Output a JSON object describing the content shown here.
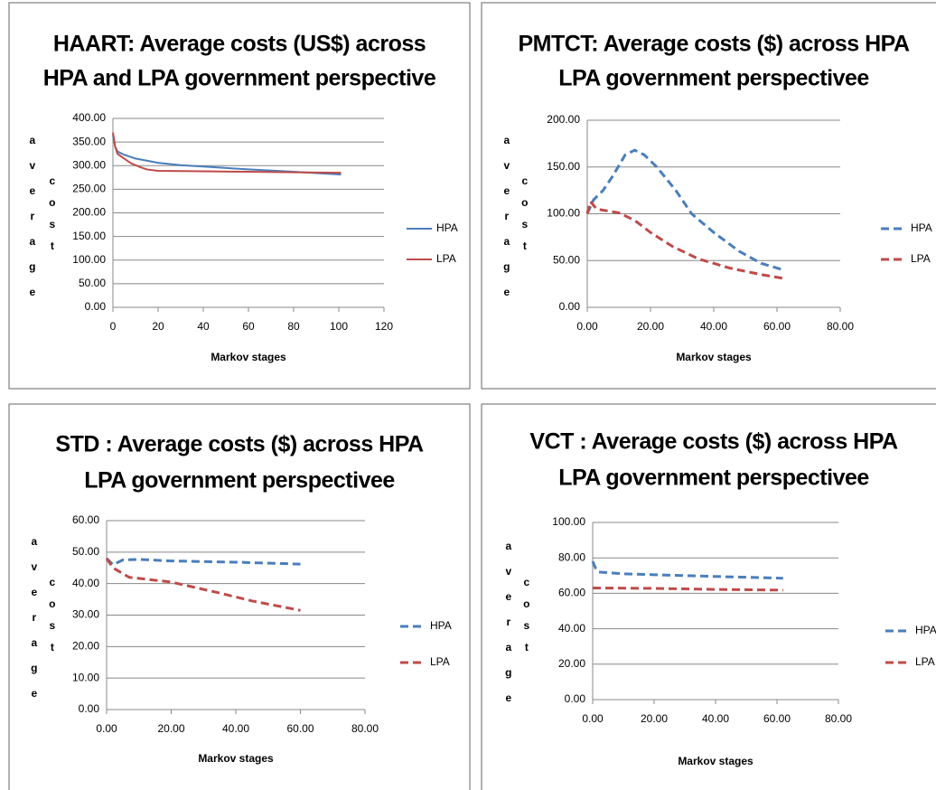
{
  "chart_data": [
    {
      "type": "line",
      "title": [
        "HAART: Average costs (US$) across",
        "HPA and LPA government perspective"
      ],
      "ylabel": [
        "average",
        "cost"
      ],
      "xlabel": "Markov stages",
      "grid": true,
      "dashed": false,
      "xlim": [
        0,
        120
      ],
      "xticks": [
        0,
        20,
        40,
        60,
        80,
        100,
        120
      ],
      "ylim": [
        0,
        400
      ],
      "yticks": [
        {
          "value": 0,
          "label": "0.00"
        },
        {
          "value": 50,
          "label": "50.00"
        },
        {
          "value": 100,
          "label": "100.00"
        },
        {
          "value": 150,
          "label": "150.00"
        },
        {
          "value": 200,
          "label": "200.00"
        },
        {
          "value": 250,
          "label": "250.00"
        },
        {
          "value": 300,
          "label": "300.00"
        },
        {
          "value": 350,
          "label": "350.00"
        },
        {
          "value": 400,
          "label": "400.00"
        }
      ],
      "series": [
        {
          "name": "HPA",
          "color": "#4a7ebb",
          "x": [
            0,
            1,
            2,
            5,
            10,
            20,
            30,
            40,
            60,
            80,
            101
          ],
          "values": [
            365,
            340,
            330,
            323,
            315,
            306,
            301,
            298,
            292,
            287,
            281
          ]
        },
        {
          "name": "LPA",
          "color": "#be4b48",
          "x": [
            0,
            1,
            2,
            5,
            8,
            12,
            15,
            20,
            40,
            60,
            80,
            101
          ],
          "values": [
            370,
            340,
            325,
            315,
            305,
            297,
            292,
            289,
            288,
            287,
            286,
            285
          ]
        }
      ]
    },
    {
      "type": "line",
      "title": [
        "PMTCT: Average costs ($) across HPA",
        "LPA government perspectivee"
      ],
      "ylabel": [
        "average",
        "cost"
      ],
      "xlabel": "Markov stages",
      "grid": true,
      "dashed": true,
      "xlim": [
        0,
        80
      ],
      "xticks": [
        {
          "value": 0,
          "label": "0.00"
        },
        {
          "value": 20,
          "label": "20.00"
        },
        {
          "value": 40,
          "label": "40.00"
        },
        {
          "value": 60,
          "label": "60.00"
        },
        {
          "value": 80,
          "label": "80.00"
        }
      ],
      "ylim": [
        0,
        200
      ],
      "yticks": [
        {
          "value": 0,
          "label": "0.00"
        },
        {
          "value": 50,
          "label": "50.00"
        },
        {
          "value": 100,
          "label": "100.00"
        },
        {
          "value": 150,
          "label": "150.00"
        },
        {
          "value": 200,
          "label": "200.00"
        }
      ],
      "series": [
        {
          "name": "HPA",
          "color": "#4a7ebb",
          "x": [
            0,
            2,
            5,
            8,
            12,
            15,
            18,
            22,
            28,
            33,
            40,
            48,
            55,
            62
          ],
          "values": [
            100,
            115,
            125,
            140,
            163,
            168,
            163,
            150,
            125,
            100,
            80,
            60,
            47,
            40
          ]
        },
        {
          "name": "LPA",
          "color": "#be4b48",
          "x": [
            0,
            1,
            3,
            10,
            15,
            20,
            27,
            35,
            45,
            55,
            62
          ],
          "values": [
            100,
            113,
            105,
            101,
            93,
            80,
            65,
            52,
            42,
            35,
            31
          ]
        }
      ]
    },
    {
      "type": "line",
      "title": [
        "STD : Average costs ($) across HPA",
        "LPA government perspectivee"
      ],
      "ylabel": [
        "average",
        "cost"
      ],
      "xlabel": "Markov stages",
      "grid": true,
      "dashed": true,
      "xlim": [
        0,
        80
      ],
      "xticks": [
        {
          "value": 0,
          "label": "0.00"
        },
        {
          "value": 20,
          "label": "20.00"
        },
        {
          "value": 40,
          "label": "40.00"
        },
        {
          "value": 60,
          "label": "60.00"
        },
        {
          "value": 80,
          "label": "80.00"
        }
      ],
      "ylim": [
        0,
        60
      ],
      "yticks": [
        {
          "value": 0,
          "label": "0.00"
        },
        {
          "value": 10,
          "label": "10.00"
        },
        {
          "value": 20,
          "label": "20.00"
        },
        {
          "value": 30,
          "label": "30.00"
        },
        {
          "value": 40,
          "label": "40.00"
        },
        {
          "value": 50,
          "label": "50.00"
        },
        {
          "value": 60,
          "label": "60.00"
        }
      ],
      "series": [
        {
          "name": "HPA",
          "color": "#4a7ebb",
          "x": [
            0,
            2,
            5,
            10,
            20,
            40,
            60
          ],
          "values": [
            48,
            46,
            47.5,
            47.7,
            47.2,
            46.8,
            46.2
          ]
        },
        {
          "name": "LPA",
          "color": "#be4b48",
          "x": [
            0,
            2,
            7,
            20,
            35,
            45,
            60
          ],
          "values": [
            48,
            45,
            42,
            40.5,
            37,
            34.5,
            31.5
          ]
        }
      ]
    },
    {
      "type": "line",
      "title": [
        "VCT : Average costs ($) across HPA",
        "LPA government perspectivee"
      ],
      "ylabel": [
        "average",
        "cost"
      ],
      "xlabel": "Markov stages",
      "grid": true,
      "dashed": true,
      "xlim": [
        0,
        80
      ],
      "xticks": [
        {
          "value": 0,
          "label": "0.00"
        },
        {
          "value": 20,
          "label": "20.00"
        },
        {
          "value": 40,
          "label": "40.00"
        },
        {
          "value": 60,
          "label": "60.00"
        },
        {
          "value": 80,
          "label": "80.00"
        }
      ],
      "ylim": [
        0,
        100
      ],
      "yticks": [
        {
          "value": 0,
          "label": "0.00"
        },
        {
          "value": 20,
          "label": "20.00"
        },
        {
          "value": 40,
          "label": "40.00"
        },
        {
          "value": 60,
          "label": "60.00"
        },
        {
          "value": 80,
          "label": "80.00"
        },
        {
          "value": 100,
          "label": "100.00"
        }
      ],
      "series": [
        {
          "name": "HPA",
          "color": "#4a7ebb",
          "x": [
            0,
            1,
            2,
            10,
            20,
            40,
            62
          ],
          "values": [
            78,
            74,
            72,
            71,
            70.5,
            69.5,
            68.5
          ]
        },
        {
          "name": "LPA",
          "color": "#be4b48",
          "x": [
            0,
            20,
            40,
            62
          ],
          "values": [
            63,
            62.8,
            62.2,
            61.8
          ]
        }
      ]
    }
  ]
}
